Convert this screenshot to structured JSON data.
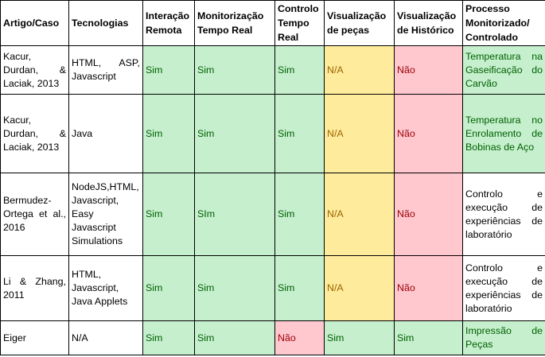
{
  "table": {
    "headers": [
      "Artigo/Caso",
      "Tecnologias",
      "Interação Remota",
      "Monitorização Tempo Real",
      "Controlo Tempo Real",
      "Visualização de peças",
      "Visualização de Histórico",
      "Processo Monitorizado/ Controlado"
    ],
    "rows": [
      {
        "artigo": "Kacur, Durdan, & Laciak, 2013",
        "tecnologias": "HTML, ASP, Javascript",
        "interacao": "Sim",
        "monitorizacao": "Sim",
        "controlo": "Sim",
        "pecas": "N/A",
        "historico": "Não",
        "processo": "Temperatura na Gaseificação do Carvão"
      },
      {
        "artigo": "Kacur, Durdan, & Laciak, 2013",
        "tecnologias": "Java",
        "interacao": "Sim",
        "monitorizacao": "Sim",
        "controlo": "Sim",
        "pecas": "N/A",
        "historico": "Não",
        "processo": "Temperatura no Enrolamento de Bobinas de Aço"
      },
      {
        "artigo": "Bermudez-Ortega et al., 2016",
        "tecnologias": "NodeJS,HTML, Javascript, Easy Javascript Simulations",
        "interacao": "Sim",
        "monitorizacao": "SIm",
        "controlo": "Sim",
        "pecas": "N/A",
        "historico": "Não",
        "processo": "Controlo e execução de experiências de laboratório"
      },
      {
        "artigo": "Li & Zhang, 2011",
        "tecnologias": "HTML, Javascript, Java Applets",
        "interacao": "Sim",
        "monitorizacao": "Sim",
        "controlo": "Sim",
        "pecas": "N/A",
        "historico": "Não",
        "processo": "Controlo e execução de experiências de laboratório"
      },
      {
        "artigo": "Eiger",
        "tecnologias": "N/A",
        "interacao": "Sim",
        "monitorizacao": "Sim",
        "controlo": "Não",
        "pecas": "Sim",
        "historico": "Sim",
        "processo": "Impressão de Peças"
      }
    ]
  },
  "colors": {
    "sim_fill": "#c6efce",
    "sim_text": "#006100",
    "na_fill": "#ffeb9c",
    "na_text": "#9c6500",
    "nao_fill": "#ffc7ce",
    "nao_text": "#9c0006"
  }
}
